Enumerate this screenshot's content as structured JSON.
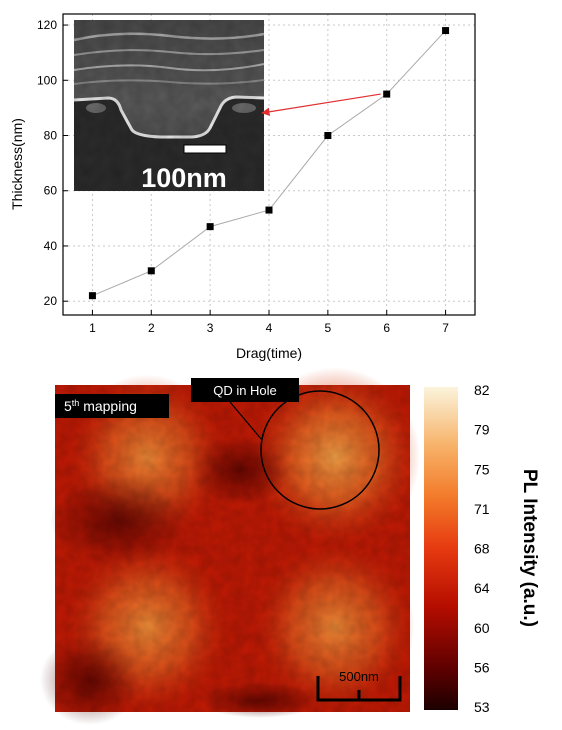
{
  "chart_data": [
    {
      "type": "line",
      "xlabel": "Drag(time)",
      "ylabel": "Thickness(nm)",
      "xlim": [
        0.5,
        7.5
      ],
      "ylim": [
        15,
        124
      ],
      "x_ticks": [
        1,
        2,
        3,
        4,
        5,
        6,
        7
      ],
      "y_ticks": [
        20,
        40,
        60,
        80,
        100,
        120
      ],
      "grid": true,
      "series": [
        {
          "marker": "square",
          "color": "#000000",
          "line_color": "#aaaaaa",
          "x": [
            1,
            2,
            3,
            4,
            5,
            6,
            7
          ],
          "y": [
            22,
            31,
            47,
            53,
            80,
            95,
            118
          ]
        }
      ],
      "inset": {
        "kind": "SEM cross-section image",
        "scale_bar_label": "100nm",
        "arrow_target": {
          "x": 6,
          "y": 95
        },
        "arrow_color": "#e03030"
      }
    },
    {
      "type": "heatmap",
      "badge_base": "5",
      "badge_sup": "th",
      "badge_rest": " mapping",
      "annotation": "QD in Hole",
      "scale_bar_label": "500nm",
      "colorbar_label": "PL Intensity (a.u.)",
      "colorbar_ticks": [
        82,
        79,
        75,
        71,
        68,
        64,
        60,
        56,
        53
      ],
      "value_range": [
        53,
        82
      ],
      "bright_spots": [
        {
          "row": 0,
          "col": 0,
          "peak": 70
        },
        {
          "row": 0,
          "col": 1,
          "peak": 75
        },
        {
          "row": 1,
          "col": 0,
          "peak": 72
        },
        {
          "row": 1,
          "col": 1,
          "peak": 71
        }
      ]
    }
  ]
}
